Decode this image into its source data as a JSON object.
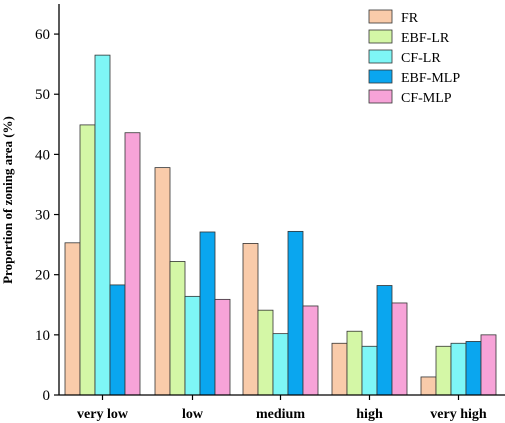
{
  "chart_data": {
    "type": "bar",
    "title": "",
    "xlabel": "",
    "ylabel": "Proportion of zoning area (%)",
    "ylim": [
      0,
      65
    ],
    "yticks": [
      0,
      10,
      20,
      30,
      40,
      50,
      60
    ],
    "categories": [
      "very low",
      "low",
      "medium",
      "high",
      "very high"
    ],
    "series": [
      {
        "name": "FR",
        "color": "#F9CBAA",
        "values": [
          25.3,
          37.8,
          25.2,
          8.6,
          3.0
        ]
      },
      {
        "name": "EBF-LR",
        "color": "#D4F7A6",
        "values": [
          44.9,
          22.2,
          14.1,
          10.6,
          8.1
        ]
      },
      {
        "name": "CF-LR",
        "color": "#7EF6F6",
        "values": [
          56.5,
          16.4,
          10.2,
          8.1,
          8.6
        ]
      },
      {
        "name": "EBF-MLP",
        "color": "#0AA6EF",
        "values": [
          18.3,
          27.1,
          27.2,
          18.2,
          8.9
        ]
      },
      {
        "name": "CF-MLP",
        "color": "#F7A3D8",
        "values": [
          43.6,
          15.9,
          14.8,
          15.3,
          10.0
        ]
      }
    ],
    "legend_position": "top-right",
    "grid": false
  }
}
